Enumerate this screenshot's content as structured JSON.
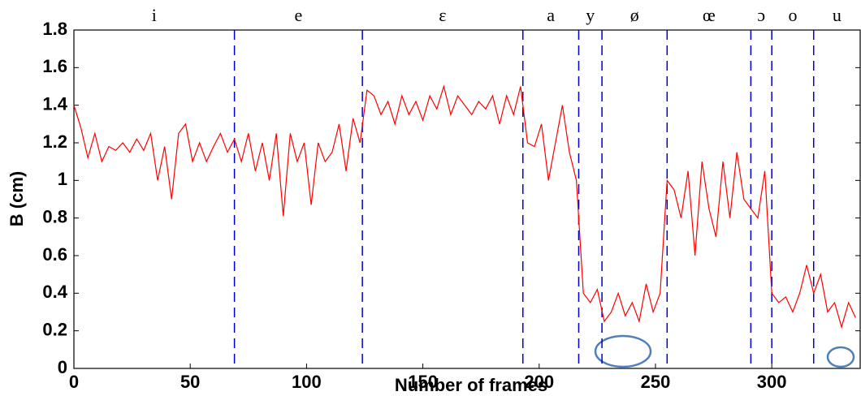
{
  "chart_data": {
    "type": "line",
    "x_label": "Number of frames",
    "y_label": "B (cm)",
    "xlim": [
      0,
      338
    ],
    "ylim": [
      0,
      1.8
    ],
    "xticks": [
      0,
      50,
      100,
      150,
      200,
      250,
      300
    ],
    "yticks": [
      0,
      0.2,
      0.4,
      0.6,
      0.8,
      1,
      1.2,
      1.4,
      1.6,
      1.8
    ],
    "boundaries": [
      69,
      124,
      193,
      217,
      227,
      255,
      291,
      300,
      318
    ],
    "boundary_color": "#0000cc",
    "segment_labels": [
      "i",
      "e",
      "ɛ",
      "a",
      "y",
      "ø",
      "œ",
      "ɔ",
      "o",
      "u"
    ],
    "x": [
      0,
      3,
      6,
      9,
      12,
      15,
      18,
      21,
      24,
      27,
      30,
      33,
      36,
      39,
      42,
      45,
      48,
      51,
      54,
      57,
      60,
      63,
      66,
      69,
      72,
      75,
      78,
      81,
      84,
      87,
      90,
      93,
      96,
      99,
      102,
      105,
      108,
      111,
      114,
      117,
      120,
      123,
      126,
      129,
      132,
      135,
      138,
      141,
      144,
      147,
      150,
      153,
      156,
      159,
      162,
      165,
      168,
      171,
      174,
      177,
      180,
      183,
      186,
      189,
      192,
      195,
      198,
      201,
      204,
      207,
      210,
      213,
      216,
      219,
      222,
      225,
      228,
      231,
      234,
      237,
      240,
      243,
      246,
      249,
      252,
      255,
      258,
      261,
      264,
      267,
      270,
      273,
      276,
      279,
      282,
      285,
      288,
      291,
      294,
      297,
      300,
      303,
      306,
      309,
      312,
      315,
      318,
      321,
      324,
      327,
      330,
      333,
      336
    ],
    "series": [
      {
        "color": "#ff0000",
        "values": [
          1.4,
          1.28,
          1.12,
          1.25,
          1.1,
          1.18,
          1.16,
          1.2,
          1.15,
          1.22,
          1.16,
          1.25,
          1.0,
          1.18,
          0.9,
          1.25,
          1.3,
          1.1,
          1.2,
          1.1,
          1.18,
          1.25,
          1.15,
          1.22,
          1.1,
          1.25,
          1.05,
          1.2,
          1.0,
          1.25,
          0.81,
          1.25,
          1.1,
          1.2,
          0.87,
          1.2,
          1.1,
          1.15,
          1.3,
          1.05,
          1.33,
          1.2,
          1.48,
          1.45,
          1.35,
          1.42,
          1.3,
          1.45,
          1.35,
          1.42,
          1.32,
          1.45,
          1.38,
          1.5,
          1.35,
          1.45,
          1.4,
          1.35,
          1.42,
          1.38,
          1.45,
          1.3,
          1.45,
          1.35,
          1.5,
          1.2,
          1.18,
          1.3,
          1.0,
          1.2,
          1.4,
          1.15,
          1.0,
          0.4,
          0.35,
          0.42,
          0.25,
          0.3,
          0.4,
          0.28,
          0.35,
          0.25,
          0.45,
          0.3,
          0.4,
          1.0,
          0.95,
          0.8,
          1.05,
          0.6,
          1.1,
          0.85,
          0.7,
          1.1,
          0.8,
          1.15,
          0.9,
          0.85,
          0.8,
          1.05,
          0.4,
          0.35,
          0.38,
          0.3,
          0.4,
          0.55,
          0.4,
          0.5,
          0.3,
          0.35,
          0.22,
          0.35,
          0.27
        ]
      }
    ]
  }
}
